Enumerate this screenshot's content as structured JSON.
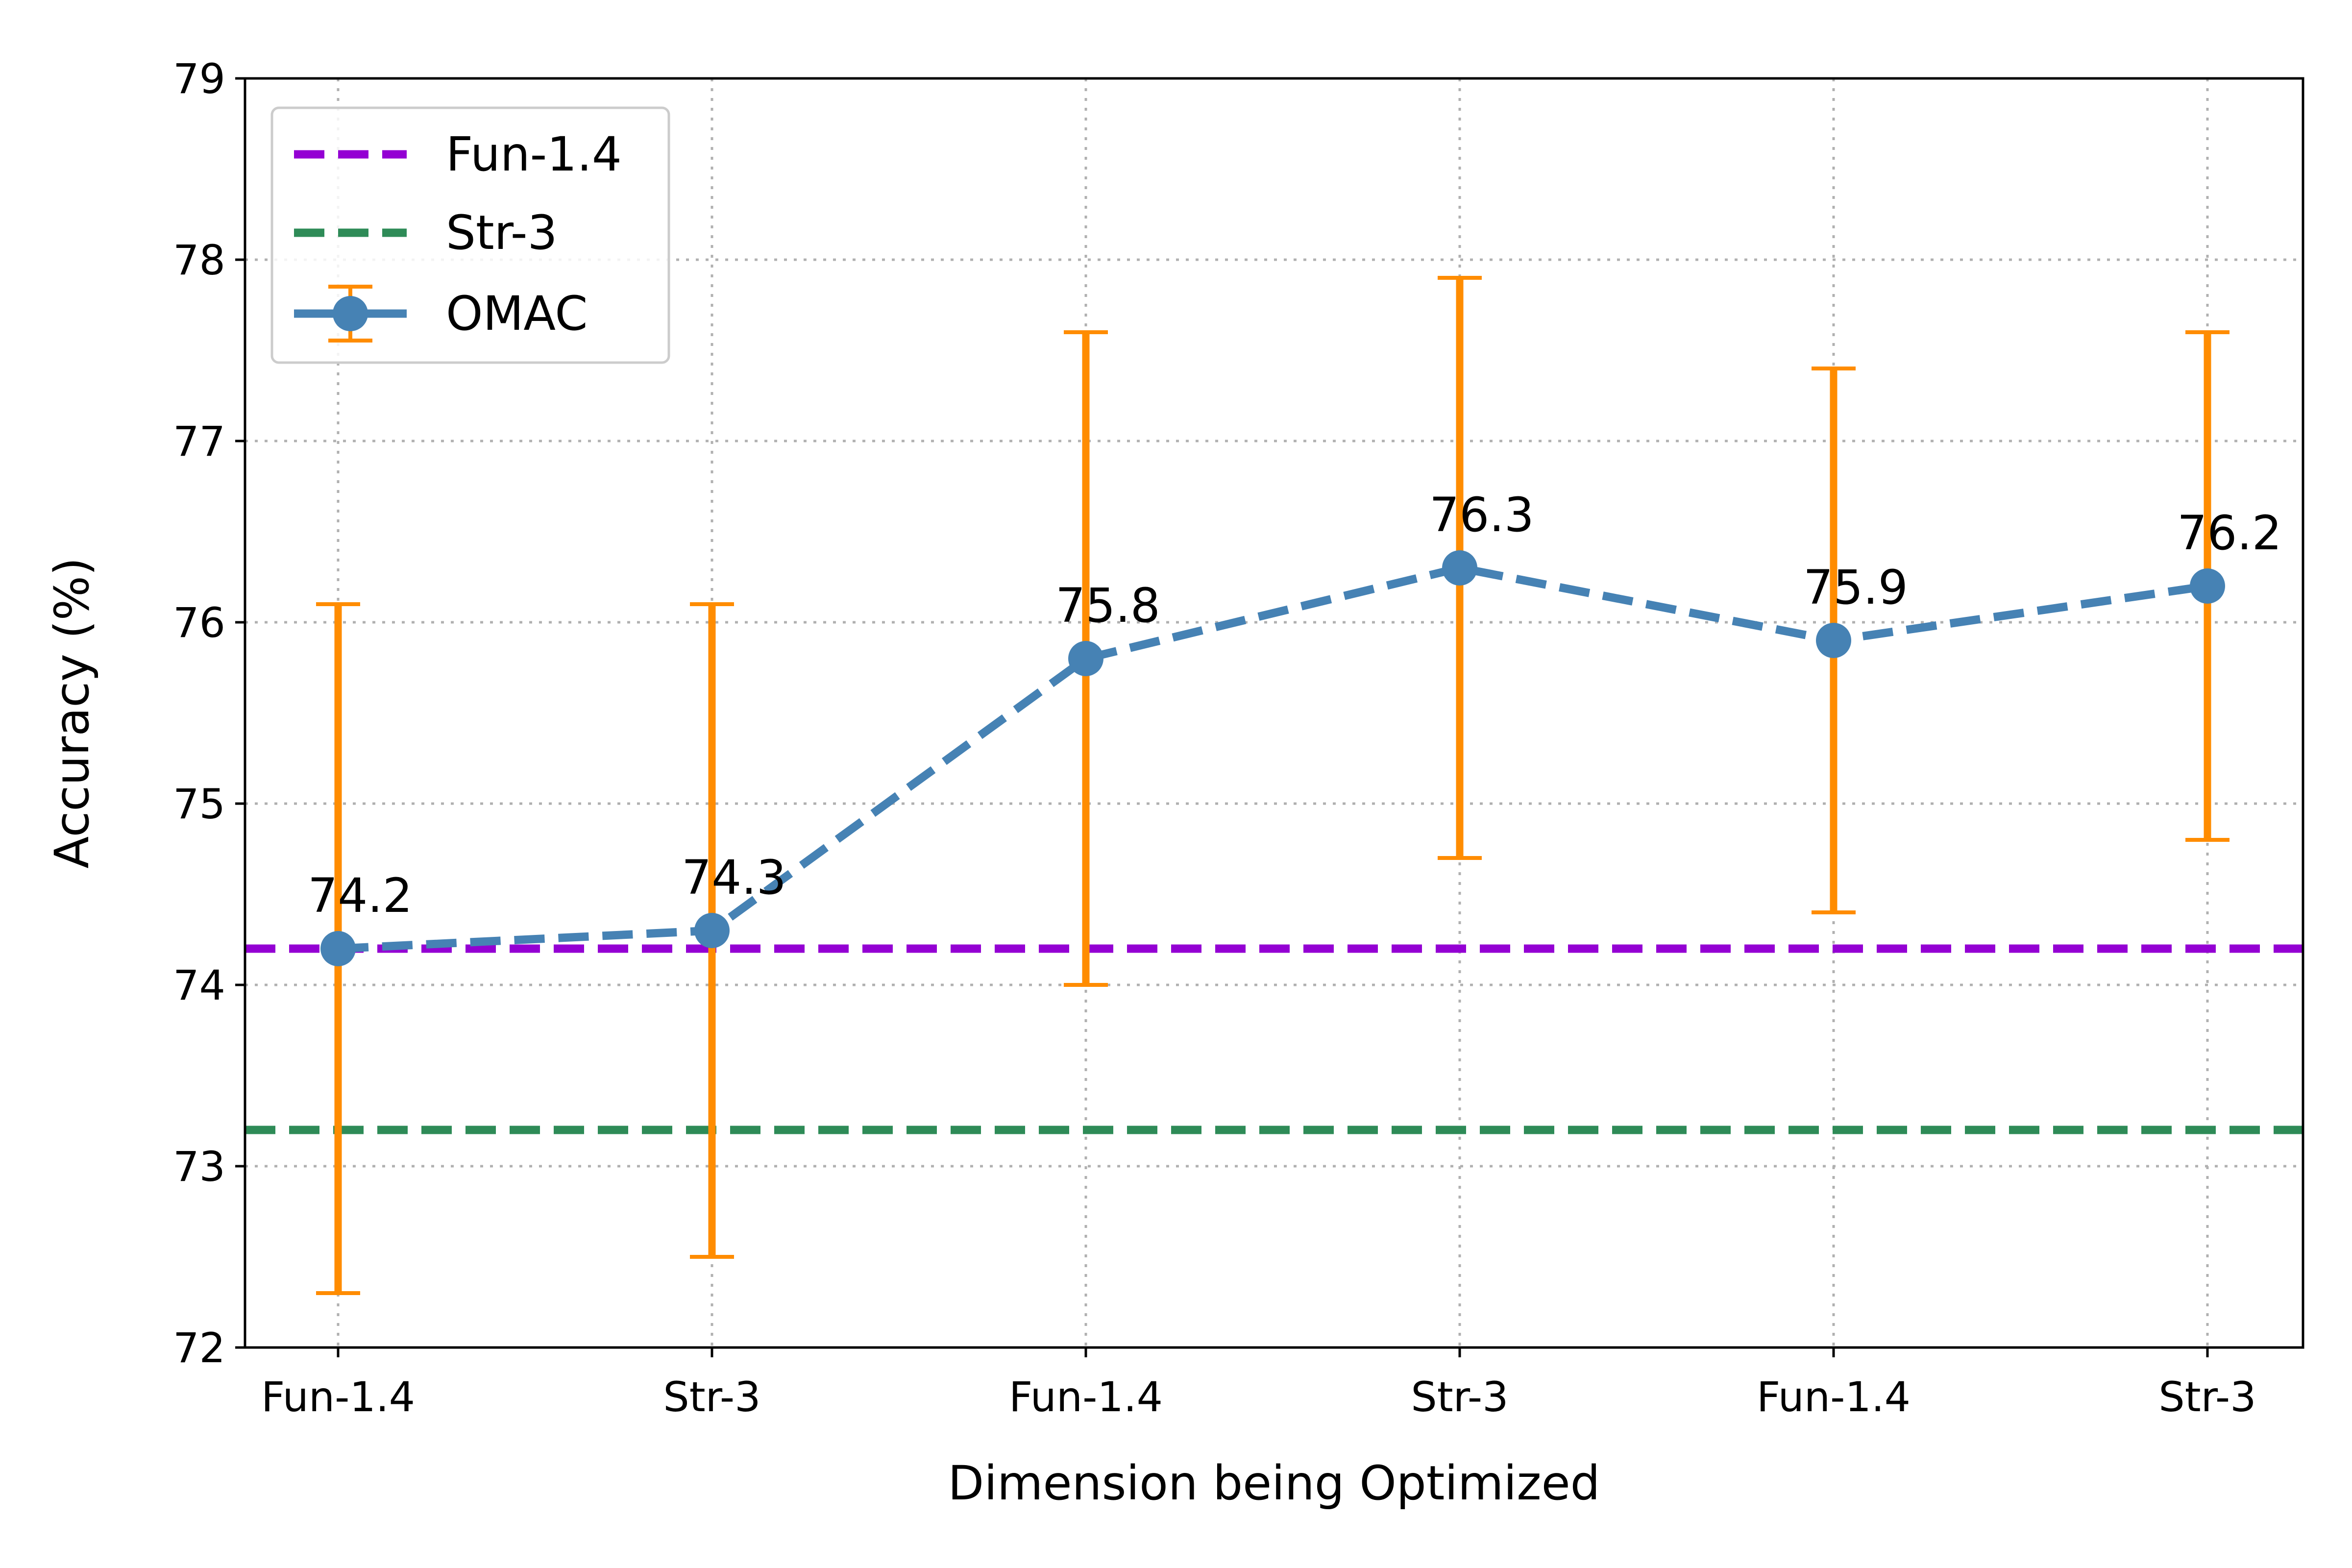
{
  "chart_data": {
    "type": "line",
    "title": "",
    "xlabel": "Dimension being Optimized",
    "ylabel": "Accuracy (%)",
    "categories": [
      "Fun-1.4",
      "Str-3",
      "Fun-1.4",
      "Str-3",
      "Fun-1.4",
      "Str-3"
    ],
    "ylim": [
      72,
      79
    ],
    "yticks": [
      "72",
      "73",
      "74",
      "75",
      "76",
      "77",
      "78",
      "79"
    ],
    "grid": true,
    "legend_position": "upper-left",
    "series": [
      {
        "name": "OMAC",
        "values": [
          74.2,
          74.3,
          75.8,
          76.3,
          75.9,
          76.2
        ],
        "value_labels": [
          "74.2",
          "74.3",
          "75.8",
          "76.3",
          "75.9",
          "76.2"
        ],
        "err_low": [
          72.3,
          72.5,
          74.0,
          74.7,
          74.4,
          74.8
        ],
        "err_high": [
          76.1,
          76.1,
          77.6,
          77.9,
          77.4,
          77.6
        ],
        "color": "#4682b4",
        "errorbar_color": "#ff8c00",
        "style": "dashed-marker"
      }
    ],
    "reference_lines": [
      {
        "name": "Fun-1.4",
        "value": 74.2,
        "color": "#9400d3",
        "style": "dashed"
      },
      {
        "name": "Str-3",
        "value": 73.2,
        "color": "#2e8b57",
        "style": "dashed"
      }
    ],
    "legend": [
      "Fun-1.4",
      "Str-3",
      "OMAC"
    ]
  }
}
